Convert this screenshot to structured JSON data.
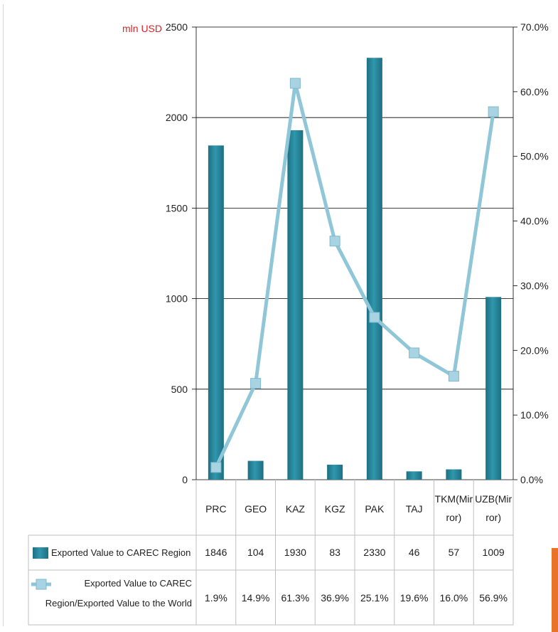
{
  "colors": {
    "bar": "#2f97ad",
    "bar_dark": "#1e6f82",
    "line": "#8fc6d8",
    "marker": "#a7d3e2",
    "unit_label": "#d9262b",
    "grid": "#000000",
    "table_border": "#bfbfbf"
  },
  "chart_data": {
    "type": "bar",
    "categories": [
      "PRC",
      "GEO",
      "KAZ",
      "KGZ",
      "PAK",
      "TAJ",
      "TKM(Mirror)",
      "UZB(Mirror)"
    ],
    "category_lines": [
      [
        "PRC"
      ],
      [
        "GEO"
      ],
      [
        "KAZ"
      ],
      [
        "KGZ"
      ],
      [
        "PAK"
      ],
      [
        "TAJ"
      ],
      [
        "TKM(Mir",
        "ror)"
      ],
      [
        "UZB(Mir",
        "ror)"
      ]
    ],
    "y_unit_label": "mln USD",
    "ylim": [
      0,
      2500
    ],
    "y_ticks": [
      0,
      500,
      1000,
      1500,
      2000,
      2500
    ],
    "y2lim": [
      0,
      70
    ],
    "y2_ticks": [
      "0.0%",
      "10.0%",
      "20.0%",
      "30.0%",
      "40.0%",
      "50.0%",
      "60.0%",
      "70.0%"
    ],
    "grid": true,
    "legend": "data-table-below",
    "series": [
      {
        "name": "Exported Value to CAREC Region",
        "type": "bar",
        "axis": "left",
        "values": [
          1846,
          104,
          1930,
          83,
          2330,
          46,
          57,
          1009
        ],
        "value_labels": [
          "1846",
          "104",
          "1930",
          "83",
          "2330",
          "46",
          "57",
          "1009"
        ],
        "name_lines": [
          "Exported Value to CAREC Region"
        ]
      },
      {
        "name": "Exported Value to CAREC Region/Exported Value to the World",
        "type": "line",
        "axis": "right",
        "values": [
          1.9,
          14.9,
          61.3,
          36.9,
          25.1,
          19.6,
          16.0,
          56.9
        ],
        "value_labels": [
          "1.9%",
          "14.9%",
          "61.3%",
          "36.9%",
          "25.1%",
          "19.6%",
          "16.0%",
          "56.9%"
        ],
        "name_lines": [
          "Exported Value to CAREC",
          "Region/Exported Value to the World"
        ]
      }
    ]
  }
}
